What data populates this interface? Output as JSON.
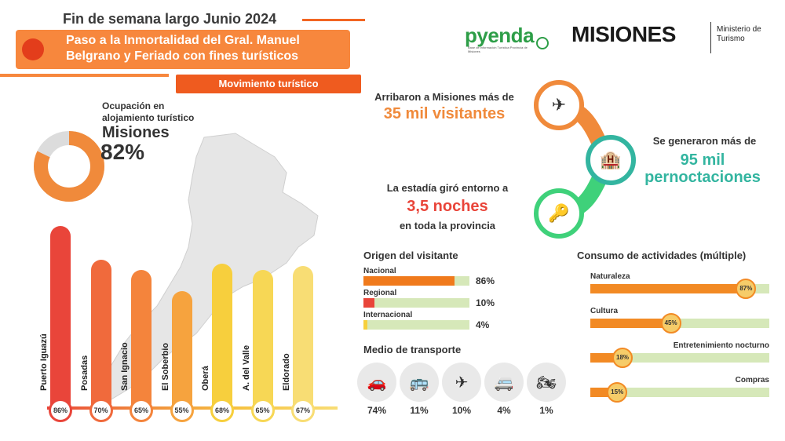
{
  "header": {
    "title": "Fin de semana largo Junio 2024",
    "banner": "Paso a la Inmortalidad del Gral. Manuel Belgrano y Feriado con fines turísticos",
    "section_pill": "Movimiento turístico"
  },
  "logos": {
    "pyenda": "pyenda",
    "pyenda_sub": "Base de información Turística Provincia de Misiones",
    "misiones": "MISIONES",
    "ministerio": "Ministerio de Turismo"
  },
  "occupancy": {
    "label": "Ocupación en alojamiento turístico",
    "region": "Misiones",
    "value_text": "82%",
    "value": 82
  },
  "chart_data": {
    "type": "bar",
    "categories": [
      "Puerto Iguazú",
      "Posadas",
      "San Ignacio",
      "El Soberbio",
      "Oberá",
      "A. del Valle",
      "Eldorado"
    ],
    "values": [
      86,
      70,
      65,
      55,
      68,
      65,
      67
    ],
    "value_labels": [
      "86%",
      "70%",
      "65%",
      "55%",
      "68%",
      "65%",
      "67%"
    ],
    "colors": [
      "#e9453a",
      "#f06a3c",
      "#f4843c",
      "#f6a33e",
      "#f7cf3d",
      "#f7d755",
      "#f8dd74"
    ],
    "ylim": [
      0,
      100
    ]
  },
  "stats": {
    "arrivals_line": "Arribaron a Misiones más de",
    "arrivals_value": "35 mil visitantes",
    "nights_line": "Se generaron más de",
    "nights_value": "95 mil pernoctaciones",
    "stay_line1": "La estadía giró entorno a",
    "stay_value": "3,5 noches",
    "stay_line2": "en toda la provincia"
  },
  "origin": {
    "title": "Origen del visitante",
    "rows": [
      {
        "label": "Nacional",
        "value_text": "86%",
        "value": 86,
        "color": "#f07a1c"
      },
      {
        "label": "Regional",
        "value_text": "10%",
        "value": 10,
        "color": "#e9453a"
      },
      {
        "label": "Internacional",
        "value_text": "4%",
        "value": 4,
        "color": "#f6d03c"
      }
    ]
  },
  "transport": {
    "title": "Medio de transporte",
    "items": [
      {
        "icon": "car-icon",
        "glyph": "🚗",
        "value": "74%"
      },
      {
        "icon": "bus-icon",
        "glyph": "🚌",
        "value": "11%"
      },
      {
        "icon": "plane-icon",
        "glyph": "✈",
        "value": "10%"
      },
      {
        "icon": "motorhome-icon",
        "glyph": "🚐",
        "value": "4%"
      },
      {
        "icon": "motorcycle-icon",
        "glyph": "🏍",
        "value": "1%"
      }
    ]
  },
  "activities": {
    "title": "Consumo de actividades (múltiple)",
    "rows": [
      {
        "label": "Naturaleza",
        "value_text": "87%",
        "value": 87
      },
      {
        "label": "Cultura",
        "value_text": "45%",
        "value": 45
      },
      {
        "label": "Entretenimiento nocturno",
        "value_text": "18%",
        "value": 18
      },
      {
        "label": "Compras",
        "value_text": "15%",
        "value": 15
      }
    ]
  },
  "colors": {
    "orange": "#f08a3b",
    "teal": "#33b5a0",
    "red": "#e9453a",
    "green": "#3fd17a",
    "track": "#d6e8b9"
  }
}
